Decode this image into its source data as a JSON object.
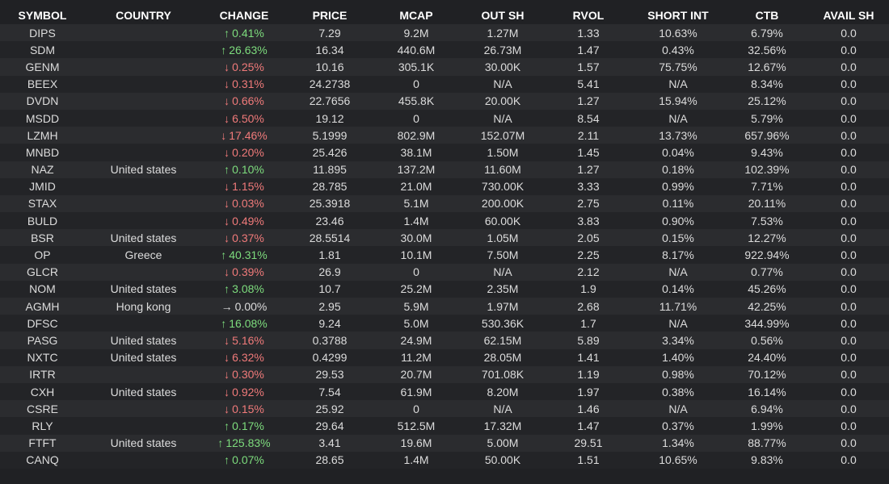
{
  "columns": [
    "SYMBOL",
    "COUNTRY",
    "CHANGE",
    "PRICE",
    "MCAP",
    "OUT SH",
    "RVOL",
    "SHORT INT",
    "CTB",
    "AVAIL SH"
  ],
  "colors": {
    "up": "#7ddc7d",
    "down": "#f07a7a",
    "flat": "#dcdcdc"
  },
  "rows": [
    {
      "symbol": "DIPS",
      "country": "",
      "dir": "up",
      "arrow": "↑",
      "change": "0.41%",
      "price": "7.29",
      "mcap": "9.2M",
      "out_sh": "1.27M",
      "rvol": "1.33",
      "short_int": "10.63%",
      "ctb": "6.79%",
      "avail_sh": "0.0"
    },
    {
      "symbol": "SDM",
      "country": "",
      "dir": "up",
      "arrow": "↑",
      "change": "26.63%",
      "price": "16.34",
      "mcap": "440.6M",
      "out_sh": "26.73M",
      "rvol": "1.47",
      "short_int": "0.43%",
      "ctb": "32.56%",
      "avail_sh": "0.0"
    },
    {
      "symbol": "GENM",
      "country": "",
      "dir": "down",
      "arrow": "↓",
      "change": "0.25%",
      "price": "10.16",
      "mcap": "305.1K",
      "out_sh": "30.00K",
      "rvol": "1.57",
      "short_int": "75.75%",
      "ctb": "12.67%",
      "avail_sh": "0.0"
    },
    {
      "symbol": "BEEX",
      "country": "",
      "dir": "down",
      "arrow": "↓",
      "change": "0.31%",
      "price": "24.2738",
      "mcap": "0",
      "out_sh": "N/A",
      "rvol": "5.41",
      "short_int": "N/A",
      "ctb": "8.34%",
      "avail_sh": "0.0"
    },
    {
      "symbol": "DVDN",
      "country": "",
      "dir": "down",
      "arrow": "↓",
      "change": "0.66%",
      "price": "22.7656",
      "mcap": "455.8K",
      "out_sh": "20.00K",
      "rvol": "1.27",
      "short_int": "15.94%",
      "ctb": "25.12%",
      "avail_sh": "0.0"
    },
    {
      "symbol": "MSDD",
      "country": "",
      "dir": "down",
      "arrow": "↓",
      "change": "6.50%",
      "price": "19.12",
      "mcap": "0",
      "out_sh": "N/A",
      "rvol": "8.54",
      "short_int": "N/A",
      "ctb": "5.79%",
      "avail_sh": "0.0"
    },
    {
      "symbol": "LZMH",
      "country": "",
      "dir": "down",
      "arrow": "↓",
      "change": "17.46%",
      "price": "5.1999",
      "mcap": "802.9M",
      "out_sh": "152.07M",
      "rvol": "2.11",
      "short_int": "13.73%",
      "ctb": "657.96%",
      "avail_sh": "0.0"
    },
    {
      "symbol": "MNBD",
      "country": "",
      "dir": "down",
      "arrow": "↓",
      "change": "0.20%",
      "price": "25.426",
      "mcap": "38.1M",
      "out_sh": "1.50M",
      "rvol": "1.45",
      "short_int": "0.04%",
      "ctb": "9.43%",
      "avail_sh": "0.0"
    },
    {
      "symbol": "NAZ",
      "country": "United states",
      "dir": "up",
      "arrow": "↑",
      "change": "0.10%",
      "price": "11.895",
      "mcap": "137.2M",
      "out_sh": "11.60M",
      "rvol": "1.27",
      "short_int": "0.18%",
      "ctb": "102.39%",
      "avail_sh": "0.0"
    },
    {
      "symbol": "JMID",
      "country": "",
      "dir": "down",
      "arrow": "↓",
      "change": "1.15%",
      "price": "28.785",
      "mcap": "21.0M",
      "out_sh": "730.00K",
      "rvol": "3.33",
      "short_int": "0.99%",
      "ctb": "7.71%",
      "avail_sh": "0.0"
    },
    {
      "symbol": "STAX",
      "country": "",
      "dir": "down",
      "arrow": "↓",
      "change": "0.03%",
      "price": "25.3918",
      "mcap": "5.1M",
      "out_sh": "200.00K",
      "rvol": "2.75",
      "short_int": "0.11%",
      "ctb": "20.11%",
      "avail_sh": "0.0"
    },
    {
      "symbol": "BULD",
      "country": "",
      "dir": "down",
      "arrow": "↓",
      "change": "0.49%",
      "price": "23.46",
      "mcap": "1.4M",
      "out_sh": "60.00K",
      "rvol": "3.83",
      "short_int": "0.90%",
      "ctb": "7.53%",
      "avail_sh": "0.0"
    },
    {
      "symbol": "BSR",
      "country": "United states",
      "dir": "down",
      "arrow": "↓",
      "change": "0.37%",
      "price": "28.5514",
      "mcap": "30.0M",
      "out_sh": "1.05M",
      "rvol": "2.05",
      "short_int": "0.15%",
      "ctb": "12.27%",
      "avail_sh": "0.0"
    },
    {
      "symbol": "OP",
      "country": "Greece",
      "dir": "up",
      "arrow": "↑",
      "change": "40.31%",
      "price": "1.81",
      "mcap": "10.1M",
      "out_sh": "7.50M",
      "rvol": "2.25",
      "short_int": "8.17%",
      "ctb": "922.94%",
      "avail_sh": "0.0"
    },
    {
      "symbol": "GLCR",
      "country": "",
      "dir": "down",
      "arrow": "↓",
      "change": "0.39%",
      "price": "26.9",
      "mcap": "0",
      "out_sh": "N/A",
      "rvol": "2.12",
      "short_int": "N/A",
      "ctb": "0.77%",
      "avail_sh": "0.0"
    },
    {
      "symbol": "NOM",
      "country": "United states",
      "dir": "up",
      "arrow": "↑",
      "change": "3.08%",
      "price": "10.7",
      "mcap": "25.2M",
      "out_sh": "2.35M",
      "rvol": "1.9",
      "short_int": "0.14%",
      "ctb": "45.26%",
      "avail_sh": "0.0"
    },
    {
      "symbol": "AGMH",
      "country": "Hong kong",
      "dir": "flat",
      "arrow": "→",
      "change": "0.00%",
      "price": "2.95",
      "mcap": "5.9M",
      "out_sh": "1.97M",
      "rvol": "2.68",
      "short_int": "11.71%",
      "ctb": "42.25%",
      "avail_sh": "0.0"
    },
    {
      "symbol": "DFSC",
      "country": "",
      "dir": "up",
      "arrow": "↑",
      "change": "16.08%",
      "price": "9.24",
      "mcap": "5.0M",
      "out_sh": "530.36K",
      "rvol": "1.7",
      "short_int": "N/A",
      "ctb": "344.99%",
      "avail_sh": "0.0"
    },
    {
      "symbol": "PASG",
      "country": "United states",
      "dir": "down",
      "arrow": "↓",
      "change": "5.16%",
      "price": "0.3788",
      "mcap": "24.9M",
      "out_sh": "62.15M",
      "rvol": "5.89",
      "short_int": "3.34%",
      "ctb": "0.56%",
      "avail_sh": "0.0"
    },
    {
      "symbol": "NXTC",
      "country": "United states",
      "dir": "down",
      "arrow": "↓",
      "change": "6.32%",
      "price": "0.4299",
      "mcap": "11.2M",
      "out_sh": "28.05M",
      "rvol": "1.41",
      "short_int": "1.40%",
      "ctb": "24.40%",
      "avail_sh": "0.0"
    },
    {
      "symbol": "IRTR",
      "country": "",
      "dir": "down",
      "arrow": "↓",
      "change": "0.30%",
      "price": "29.53",
      "mcap": "20.7M",
      "out_sh": "701.08K",
      "rvol": "1.19",
      "short_int": "0.98%",
      "ctb": "70.12%",
      "avail_sh": "0.0"
    },
    {
      "symbol": "CXH",
      "country": "United states",
      "dir": "down",
      "arrow": "↓",
      "change": "0.92%",
      "price": "7.54",
      "mcap": "61.9M",
      "out_sh": "8.20M",
      "rvol": "1.97",
      "short_int": "0.38%",
      "ctb": "16.14%",
      "avail_sh": "0.0"
    },
    {
      "symbol": "CSRE",
      "country": "",
      "dir": "down",
      "arrow": "↓",
      "change": "0.15%",
      "price": "25.92",
      "mcap": "0",
      "out_sh": "N/A",
      "rvol": "1.46",
      "short_int": "N/A",
      "ctb": "6.94%",
      "avail_sh": "0.0"
    },
    {
      "symbol": "RLY",
      "country": "",
      "dir": "up",
      "arrow": "↑",
      "change": "0.17%",
      "price": "29.64",
      "mcap": "512.5M",
      "out_sh": "17.32M",
      "rvol": "1.47",
      "short_int": "0.37%",
      "ctb": "1.99%",
      "avail_sh": "0.0"
    },
    {
      "symbol": "FTFT",
      "country": "United states",
      "dir": "up",
      "arrow": "↑",
      "change": "125.83%",
      "price": "3.41",
      "mcap": "19.6M",
      "out_sh": "5.00M",
      "rvol": "29.51",
      "short_int": "1.34%",
      "ctb": "88.77%",
      "avail_sh": "0.0"
    },
    {
      "symbol": "CANQ",
      "country": "",
      "dir": "up",
      "arrow": "↑",
      "change": "0.07%",
      "price": "28.65",
      "mcap": "1.4M",
      "out_sh": "50.00K",
      "rvol": "1.51",
      "short_int": "10.65%",
      "ctb": "9.83%",
      "avail_sh": "0.0"
    }
  ]
}
